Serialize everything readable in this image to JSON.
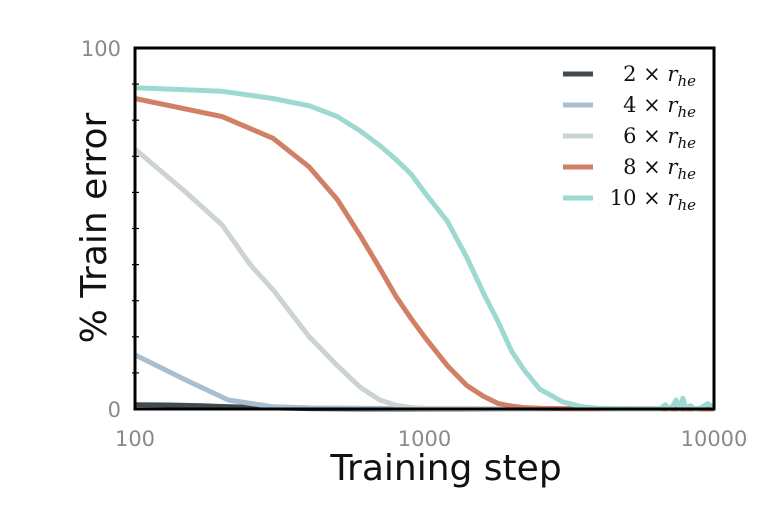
{
  "chart_data": {
    "type": "line",
    "xlabel": "Training step",
    "ylabel": "% Train error",
    "xscale": "log",
    "xlim": [
      100,
      10000
    ],
    "ylim": [
      0,
      100
    ],
    "xticks": [
      {
        "v": 100,
        "label": "100"
      },
      {
        "v": 1000,
        "label": "1000"
      },
      {
        "v": 10000,
        "label": "10000"
      }
    ],
    "yticks": [
      {
        "v": 0,
        "label": "0"
      },
      {
        "v": 100,
        "label": "100"
      }
    ],
    "legend_position": "top-right",
    "series": [
      {
        "name": "2 × r_he",
        "label_num": "2",
        "label_mul": "×",
        "label_var": "r",
        "label_sub": "he",
        "color": "#414a4f",
        "x": [
          100,
          130,
          170,
          200,
          250,
          300,
          400,
          600,
          1000,
          3000,
          10000
        ],
        "y": [
          1.2,
          1.1,
          0.9,
          0.7,
          0.5,
          0.3,
          0.1,
          0,
          0,
          0,
          0
        ]
      },
      {
        "name": "4 × r_he",
        "label_num": "4",
        "label_mul": "×",
        "label_var": "r",
        "label_sub": "he",
        "color": "#a9bfcf",
        "x": [
          100,
          150,
          210,
          300,
          400,
          600,
          1000,
          3000,
          10000
        ],
        "y": [
          15,
          8,
          2.5,
          0.6,
          0.3,
          0.2,
          0.1,
          0,
          0
        ]
      },
      {
        "name": "6 × r_he",
        "label_num": "6",
        "label_mul": "×",
        "label_var": "r",
        "label_sub": "he",
        "color": "#ccd3d3",
        "x": [
          100,
          150,
          200,
          250,
          300,
          400,
          500,
          600,
          700,
          800,
          900,
          1000,
          2000,
          10000
        ],
        "y": [
          72,
          60,
          51,
          40,
          33,
          20,
          12,
          6,
          2.5,
          1,
          0.4,
          0.2,
          0.1,
          0
        ]
      },
      {
        "name": "8 × r_he",
        "label_num": "8",
        "label_mul": "×",
        "label_var": "r",
        "label_sub": "he",
        "color": "#d17f65",
        "x": [
          100,
          200,
          300,
          400,
          500,
          600,
          700,
          800,
          900,
          1000,
          1200,
          1400,
          1600,
          1800,
          2000,
          2200,
          2500,
          3000,
          10000
        ],
        "y": [
          86,
          81,
          75,
          67,
          58,
          48,
          39,
          31,
          25,
          20,
          12,
          6.5,
          3.5,
          1.5,
          0.8,
          0.4,
          0.2,
          0.1,
          0
        ]
      },
      {
        "name": "10 × r_he",
        "label_num": "10",
        "label_mul": "×",
        "label_var": "r",
        "label_sub": "he",
        "color": "#9ed9d1",
        "x": [
          100,
          200,
          300,
          400,
          500,
          600,
          700,
          800,
          900,
          1000,
          1200,
          1400,
          1600,
          1800,
          2000,
          2200,
          2500,
          3000,
          3500,
          4000,
          5000,
          6000,
          6500,
          6800,
          7000,
          7200,
          7400,
          7600,
          7800,
          8000,
          8300,
          8600,
          9000,
          9500,
          10000
        ],
        "y": [
          89,
          88,
          86,
          84,
          81,
          77,
          73,
          69,
          65,
          60,
          52,
          42,
          32,
          24,
          16,
          11,
          5.5,
          2,
          0.6,
          0.2,
          0.1,
          0.1,
          0,
          1.2,
          0,
          0.8,
          2.5,
          0,
          3,
          0.2,
          0.9,
          0,
          0.3,
          1.5,
          0.4
        ]
      }
    ]
  }
}
